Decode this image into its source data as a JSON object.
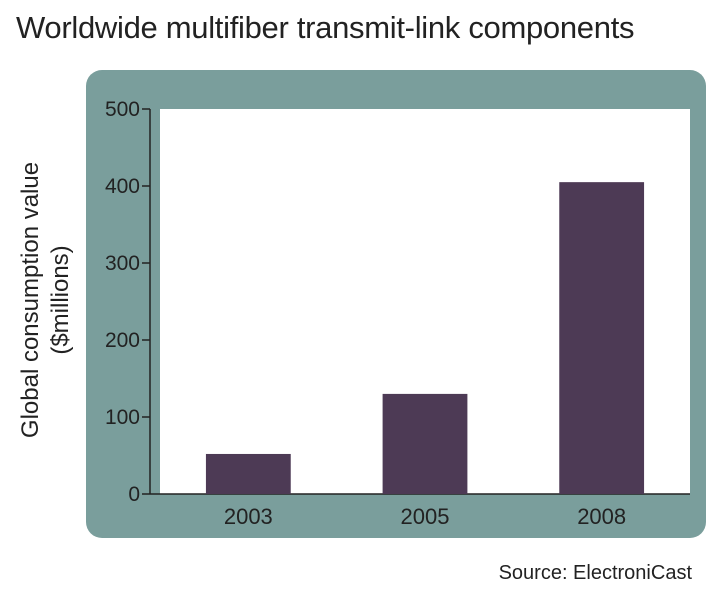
{
  "title": "Worldwide multifiber transmit-link components",
  "source": "Source: ElectroniCast",
  "colors": {
    "frame": "#7a9e9c",
    "plot_background": "#ffffff",
    "bar": "#4d3a55",
    "text": "#222222"
  },
  "chart_data": {
    "type": "bar",
    "categories": [
      "2003",
      "2005",
      "2008"
    ],
    "values": [
      52,
      130,
      405
    ],
    "ylabel_lines": [
      "Global consumption value",
      "($millions)"
    ],
    "xlabel": "",
    "ylim": [
      0,
      500
    ],
    "yticks": [
      0,
      100,
      200,
      300,
      400,
      500
    ],
    "ytick_labels": [
      "0",
      "100",
      "200",
      "300",
      "400",
      "500"
    ],
    "grid": false,
    "legend": "none"
  }
}
